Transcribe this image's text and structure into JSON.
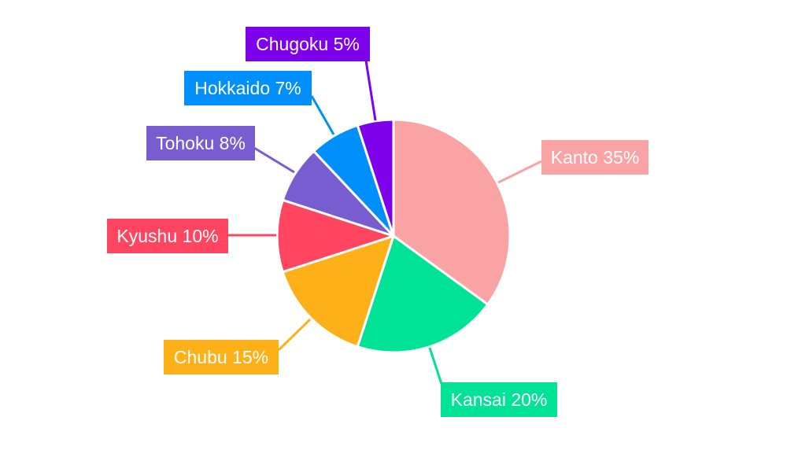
{
  "chart_data": {
    "type": "pie",
    "categories": [
      "Kanto",
      "Kansai",
      "Chubu",
      "Kyushu",
      "Tohoku",
      "Hokkaido",
      "Chugoku"
    ],
    "values": [
      35,
      20,
      15,
      10,
      8,
      7,
      5
    ],
    "labels": [
      "Kanto 35%",
      "Kansai 20%",
      "Chubu 15%",
      "Kyushu 10%",
      "Tohoku 8%",
      "Hokkaido 7%",
      "Chugoku 5%"
    ],
    "colors": [
      "#f9a3a4",
      "#00e396",
      "#feb019",
      "#ff4560",
      "#775dd0",
      "#008ffb",
      "#7d02eb"
    ],
    "start_angle": "top",
    "direction": "clockwise",
    "legend": "none"
  }
}
